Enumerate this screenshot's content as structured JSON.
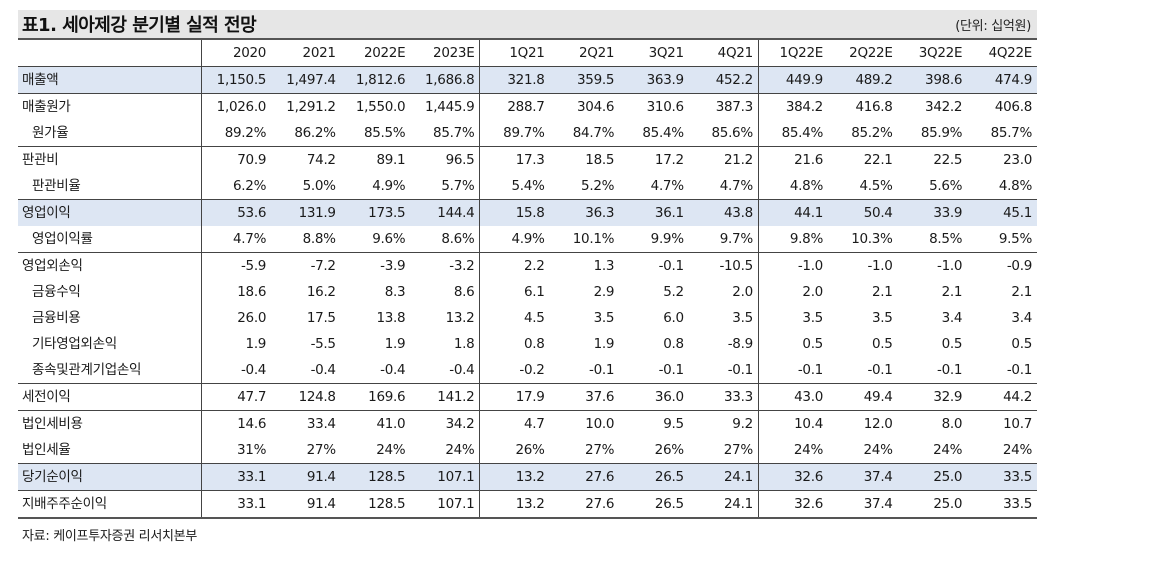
{
  "title": "표1. 세아제강 분기별 실적 전망",
  "unit": "(단위: 십억원)",
  "columns": [
    "2020",
    "2021",
    "2022E",
    "2023E",
    "1Q21",
    "2Q21",
    "3Q21",
    "4Q21",
    "1Q22E",
    "2Q22E",
    "3Q22E",
    "4Q22E"
  ],
  "rows": [
    {
      "label": "매출액",
      "values": [
        "1,150.5",
        "1,497.4",
        "1,812.6",
        "1,686.8",
        "321.8",
        "359.5",
        "363.9",
        "452.2",
        "449.9",
        "489.2",
        "398.6",
        "474.9"
      ]
    },
    {
      "label": "매출원가",
      "values": [
        "1,026.0",
        "1,291.2",
        "1,550.0",
        "1,445.9",
        "288.7",
        "304.6",
        "310.6",
        "387.3",
        "384.2",
        "416.8",
        "342.2",
        "406.8"
      ]
    },
    {
      "label": "원가율",
      "values": [
        "89.2%",
        "86.2%",
        "85.5%",
        "85.7%",
        "89.7%",
        "84.7%",
        "85.4%",
        "85.6%",
        "85.4%",
        "85.2%",
        "85.9%",
        "85.7%"
      ]
    },
    {
      "label": "판관비",
      "values": [
        "70.9",
        "74.2",
        "89.1",
        "96.5",
        "17.3",
        "18.5",
        "17.2",
        "21.2",
        "21.6",
        "22.1",
        "22.5",
        "23.0"
      ]
    },
    {
      "label": "판관비율",
      "values": [
        "6.2%",
        "5.0%",
        "4.9%",
        "5.7%",
        "5.4%",
        "5.2%",
        "4.7%",
        "4.7%",
        "4.8%",
        "4.5%",
        "5.6%",
        "4.8%"
      ]
    },
    {
      "label": "영업이익",
      "values": [
        "53.6",
        "131.9",
        "173.5",
        "144.4",
        "15.8",
        "36.3",
        "36.1",
        "43.8",
        "44.1",
        "50.4",
        "33.9",
        "45.1"
      ]
    },
    {
      "label": "영업이익률",
      "values": [
        "4.7%",
        "8.8%",
        "9.6%",
        "8.6%",
        "4.9%",
        "10.1%",
        "9.9%",
        "9.7%",
        "9.8%",
        "10.3%",
        "8.5%",
        "9.5%"
      ]
    },
    {
      "label": "영업외손익",
      "values": [
        "-5.9",
        "-7.2",
        "-3.9",
        "-3.2",
        "2.2",
        "1.3",
        "-0.1",
        "-10.5",
        "-1.0",
        "-1.0",
        "-1.0",
        "-0.9"
      ]
    },
    {
      "label": "금융수익",
      "values": [
        "18.6",
        "16.2",
        "8.3",
        "8.6",
        "6.1",
        "2.9",
        "5.2",
        "2.0",
        "2.0",
        "2.1",
        "2.1",
        "2.1"
      ]
    },
    {
      "label": "금융비용",
      "values": [
        "26.0",
        "17.5",
        "13.8",
        "13.2",
        "4.5",
        "3.5",
        "6.0",
        "3.5",
        "3.5",
        "3.5",
        "3.4",
        "3.4"
      ]
    },
    {
      "label": "기타영업외손익",
      "values": [
        "1.9",
        "-5.5",
        "1.9",
        "1.8",
        "0.8",
        "1.9",
        "0.8",
        "-8.9",
        "0.5",
        "0.5",
        "0.5",
        "0.5"
      ]
    },
    {
      "label": "종속및관계기업손익",
      "values": [
        "-0.4",
        "-0.4",
        "-0.4",
        "-0.4",
        "-0.2",
        "-0.1",
        "-0.1",
        "-0.1",
        "-0.1",
        "-0.1",
        "-0.1",
        "-0.1"
      ]
    },
    {
      "label": "세전이익",
      "values": [
        "47.7",
        "124.8",
        "169.6",
        "141.2",
        "17.9",
        "37.6",
        "36.0",
        "33.3",
        "43.0",
        "49.4",
        "32.9",
        "44.2"
      ]
    },
    {
      "label": "법인세비용",
      "values": [
        "14.6",
        "33.4",
        "41.0",
        "34.2",
        "4.7",
        "10.0",
        "9.5",
        "9.2",
        "10.4",
        "12.0",
        "8.0",
        "10.7"
      ]
    },
    {
      "label": "법인세율",
      "values": [
        "31%",
        "27%",
        "24%",
        "24%",
        "26%",
        "27%",
        "26%",
        "27%",
        "24%",
        "24%",
        "24%",
        "24%"
      ]
    },
    {
      "label": "당기순이익",
      "values": [
        "33.1",
        "91.4",
        "128.5",
        "107.1",
        "13.2",
        "27.6",
        "26.5",
        "24.1",
        "32.6",
        "37.4",
        "25.0",
        "33.5"
      ]
    },
    {
      "label": "지배주주순이익",
      "values": [
        "33.1",
        "91.4",
        "128.5",
        "107.1",
        "13.2",
        "27.6",
        "26.5",
        "24.1",
        "32.6",
        "37.4",
        "25.0",
        "33.5"
      ]
    }
  ],
  "source": "자료: 케이프투자증권 리서치본부",
  "colors": {
    "title_bg": "#e6e6e6",
    "highlight_row_bg": "#dde6f3",
    "rule": "#444444"
  }
}
